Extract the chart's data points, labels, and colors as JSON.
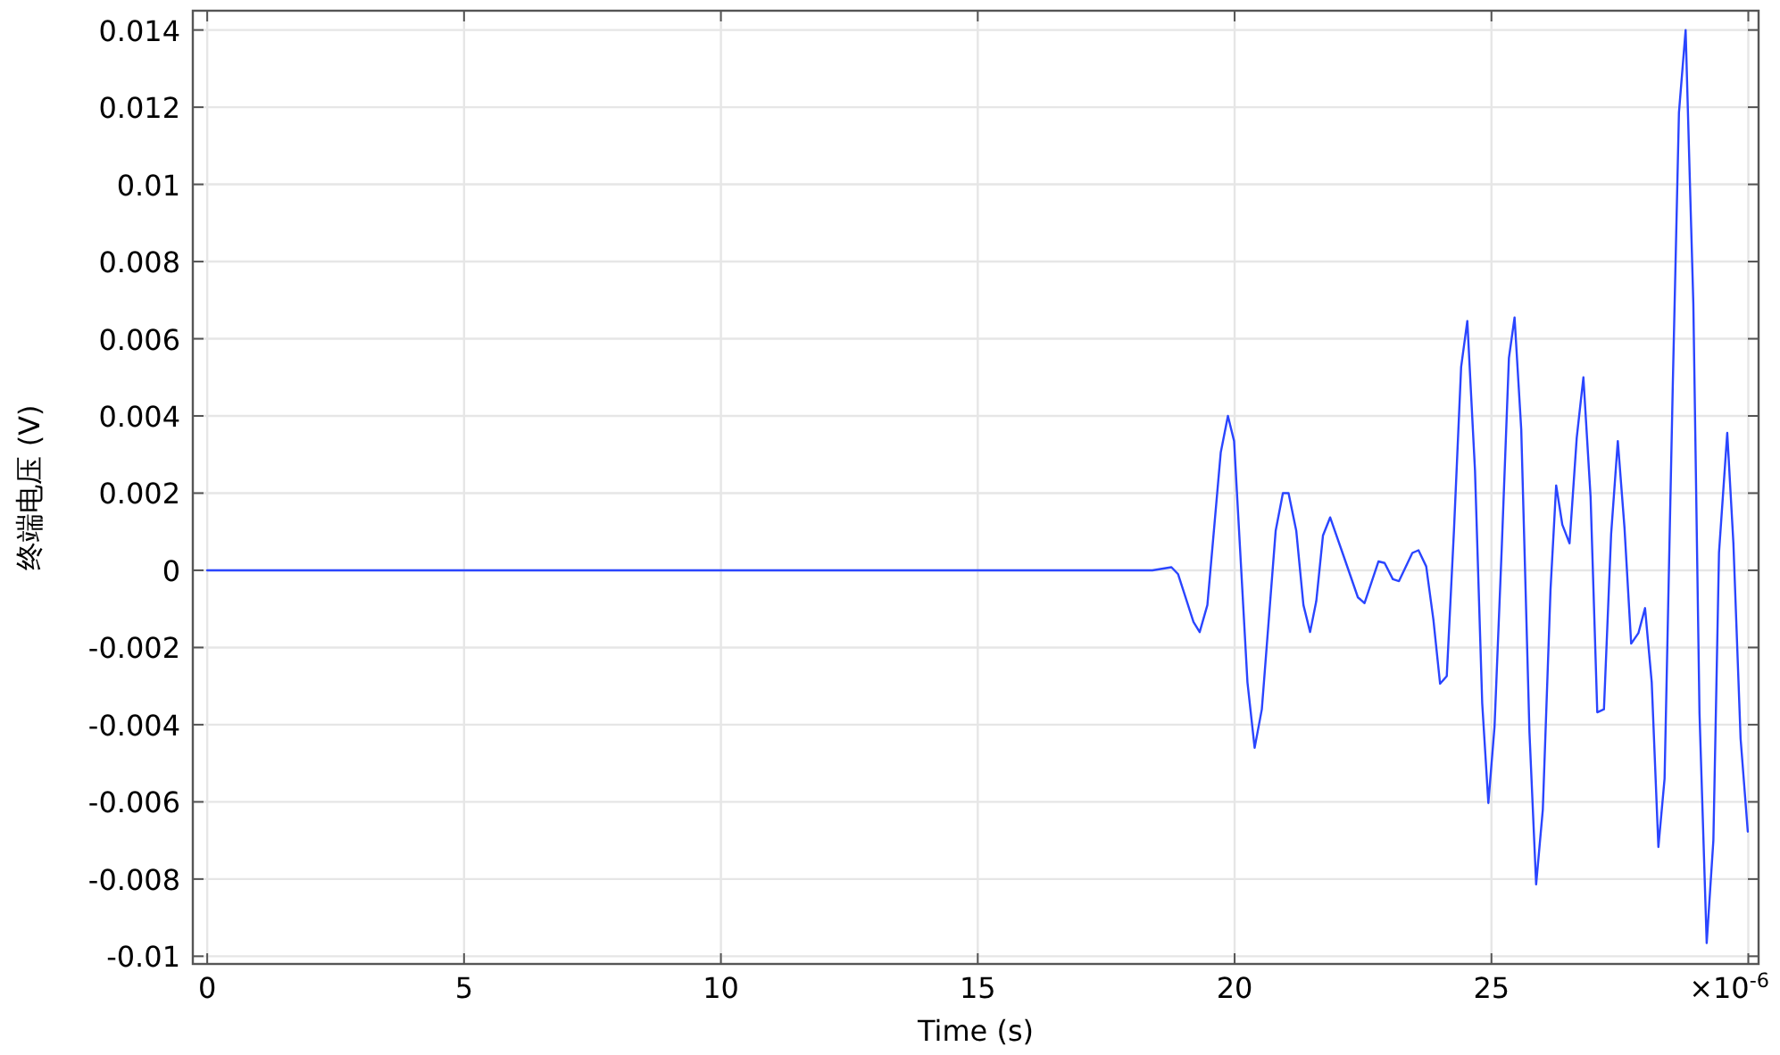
{
  "chart_data": {
    "type": "line",
    "xlabel": "Time (s)",
    "ylabel": "终端电压 (V)",
    "annotations": [
      "×10$^{-6}$"
    ],
    "xlim": [
      -0.28,
      30.2
    ],
    "ylim": [
      -0.0102,
      0.0145
    ],
    "xticks": [
      0,
      5,
      10,
      15,
      20,
      25,
      {
        "value": 30,
        "label": null
      }
    ],
    "yticks": [
      -0.01,
      -0.008,
      -0.006,
      -0.004,
      -0.002,
      0,
      0.002,
      0.004,
      0.006,
      0.008,
      0.01,
      0.012,
      0.014
    ],
    "grid": true,
    "series": [
      {
        "color": "#2a45ff",
        "x": [
          0,
          18.4,
          18.77,
          18.9,
          19.2,
          19.32,
          19.47,
          19.73,
          19.87,
          19.99,
          20.25,
          20.39,
          20.53,
          20.8,
          20.94,
          21.05,
          21.2,
          21.34,
          21.47,
          21.59,
          21.72,
          21.86,
          22.13,
          22.4,
          22.53,
          22.8,
          22.92,
          23.08,
          23.2,
          23.46,
          23.58,
          23.73,
          23.87,
          24.0,
          24.13,
          24.27,
          24.41,
          24.53,
          24.68,
          24.82,
          24.94,
          25.06,
          25.2,
          25.34,
          25.45,
          25.58,
          25.74,
          25.87,
          26.0,
          26.15,
          26.26,
          26.38,
          26.52,
          26.66,
          26.79,
          26.93,
          27.06,
          27.19,
          27.33,
          27.46,
          27.59,
          27.72,
          27.86,
          27.99,
          28.12,
          28.25,
          28.37,
          28.53,
          28.65,
          28.78,
          28.93,
          29.05,
          29.19,
          29.32,
          29.43,
          29.59,
          29.71,
          29.85,
          29.99
        ],
        "values": [
          0,
          0,
          8e-05,
          -0.0001,
          -0.00134,
          -0.0016,
          -0.0009,
          0.00305,
          0.004,
          0.00335,
          -0.0029,
          -0.0046,
          -0.0036,
          0.00103,
          0.002,
          0.002,
          0.00103,
          -0.0009,
          -0.0016,
          -0.0008,
          0.0009,
          0.00137,
          0.00034,
          -0.0007,
          -0.00085,
          0.00023,
          0.00019,
          -0.00023,
          -0.00028,
          0.00045,
          0.00052,
          0.0001,
          -0.00128,
          -0.00294,
          -0.00274,
          0.00103,
          0.00527,
          0.00646,
          0.00258,
          -0.00344,
          -0.00603,
          -0.00405,
          0.00057,
          0.0055,
          0.00655,
          0.00365,
          -0.0042,
          -0.00814,
          -0.0062,
          -0.0005,
          0.0022,
          0.00118,
          0.0007,
          0.00343,
          0.005,
          0.0019,
          -0.00368,
          -0.0036,
          0.00094,
          0.00335,
          0.0011,
          -0.0019,
          -0.00163,
          -0.00098,
          -0.0029,
          -0.00717,
          -0.0054,
          0.0048,
          0.01186,
          0.014,
          0.0069,
          -0.0037,
          -0.00966,
          -0.007,
          0.00046,
          0.00356,
          0.0007,
          -0.00436,
          -0.00677
        ]
      }
    ]
  }
}
